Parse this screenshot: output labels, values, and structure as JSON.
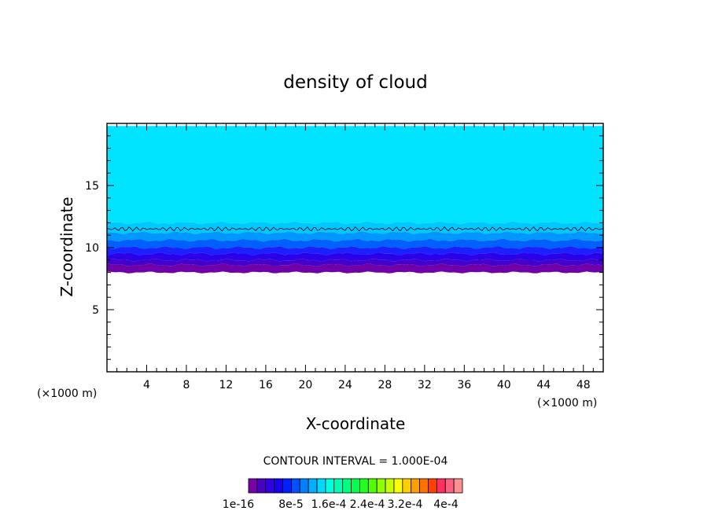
{
  "chart_data": {
    "type": "heatmap",
    "title": "density of cloud",
    "xlabel": "X-coordinate",
    "ylabel": "Z-coordinate",
    "x_unit_left": "(×1000 m)",
    "x_unit_right": "(×1000 m)",
    "xlim": [
      0,
      50
    ],
    "ylim": [
      0,
      20
    ],
    "x_ticks": [
      "4",
      "8",
      "12",
      "16",
      "20",
      "24",
      "28",
      "32",
      "36",
      "40",
      "44",
      "48"
    ],
    "y_ticks": [
      "5",
      "10",
      "15"
    ],
    "contour_interval": "CONTOUR INTERVAL = 1.000E-04",
    "colorbar": {
      "labels": [
        "1e-16",
        "8e-5",
        "1.6e-4",
        "2.4e-4",
        "3.2e-4",
        "4e-4"
      ],
      "colors": [
        "#7a00a8",
        "#4b00c8",
        "#3300e0",
        "#1a00f0",
        "#0020ff",
        "#0050ff",
        "#0080ff",
        "#00b0ff",
        "#00d8ff",
        "#00ffe0",
        "#00ffb0",
        "#00ff80",
        "#00ff50",
        "#20ff20",
        "#50ff00",
        "#90ff00",
        "#c8ff00",
        "#ffff00",
        "#ffd000",
        "#ffa000",
        "#ff7000",
        "#ff4000",
        "#ff3060",
        "#ff6080",
        "#ff9090"
      ]
    },
    "layers": [
      {
        "z_top": 19.8,
        "z_bottom": 12.0,
        "color": "#00e4ff"
      },
      {
        "z_top": 12.0,
        "z_bottom": 11.2,
        "color": "#00c8ff"
      },
      {
        "z_top": 11.2,
        "z_bottom": 10.6,
        "color": "#0098ff"
      },
      {
        "z_top": 10.6,
        "z_bottom": 10.0,
        "color": "#0060ff"
      },
      {
        "z_top": 10.0,
        "z_bottom": 9.5,
        "color": "#1a20ff"
      },
      {
        "z_top": 9.5,
        "z_bottom": 9.0,
        "color": "#2a00e8"
      },
      {
        "z_top": 9.0,
        "z_bottom": 8.6,
        "color": "#4400c8"
      },
      {
        "z_top": 8.6,
        "z_bottom": 8.0,
        "color": "#7000a8"
      }
    ],
    "contour_z": 11.5,
    "grid": false
  }
}
